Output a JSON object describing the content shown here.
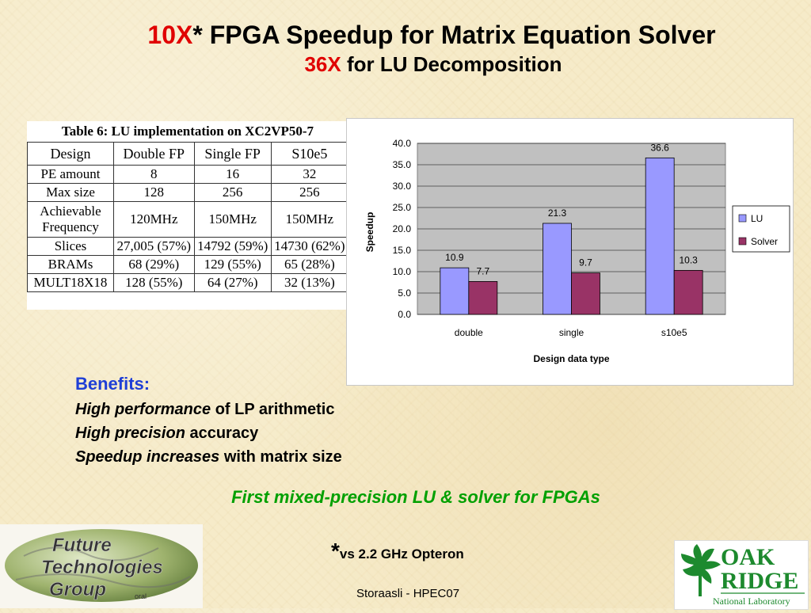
{
  "title": {
    "line1_red": "10X",
    "line1_rest": "* FPGA Speedup for Matrix Equation Solver",
    "line2_red": "36X",
    "line2_rest": " for LU Decomposition"
  },
  "table": {
    "caption": "Table 6: LU implementation on XC2VP50-7",
    "headers": [
      "Design",
      "Double FP",
      "Single FP",
      "S10e5"
    ],
    "rows": [
      [
        "PE amount",
        "8",
        "16",
        "32"
      ],
      [
        "Max size",
        "128",
        "256",
        "256"
      ],
      [
        "Achievable Frequency",
        "120MHz",
        "150MHz",
        "150MHz"
      ],
      [
        "Slices",
        "27,005 (57%)",
        "14792 (59%)",
        "14730 (62%)"
      ],
      [
        "BRAMs",
        "68 (29%)",
        "129 (55%)",
        "65 (28%)"
      ],
      [
        "MULT18X18",
        "128 (55%)",
        "64 (27%)",
        "32 (13%)"
      ]
    ]
  },
  "chart_data": {
    "type": "bar",
    "categories": [
      "double",
      "single",
      "s10e5"
    ],
    "series": [
      {
        "name": "LU",
        "values": [
          10.9,
          21.3,
          36.6
        ],
        "color": "#9999ff"
      },
      {
        "name": "Solver",
        "values": [
          7.7,
          9.7,
          10.3
        ],
        "color": "#993366"
      }
    ],
    "xlabel": "Design data type",
    "ylabel": "Speedup",
    "ylim": [
      0,
      40
    ],
    "yticks": [
      "0.0",
      "5.0",
      "10.0",
      "15.0",
      "20.0",
      "25.0",
      "30.0",
      "35.0",
      "40.0"
    ],
    "grid": true,
    "plot_background": "#c0c0c0",
    "legend": "right"
  },
  "benefits": {
    "heading": "Benefits:",
    "items": [
      {
        "emph": "High performance",
        "rest": " of LP arithmetic"
      },
      {
        "emph": "High precision",
        "rest": " accuracy"
      },
      {
        "emph": "Speedup increases",
        "rest": " with matrix size"
      }
    ]
  },
  "tagline": "First mixed-precision LU & solver for FPGAs",
  "footnote": {
    "star": "*",
    "text": "vs 2.2 GHz Opteron"
  },
  "footer": "Storaasli  - HPEC07",
  "logos": {
    "ftg": {
      "line1": "Future",
      "line2": "Technologies",
      "line3": "Group",
      "small": "oral"
    },
    "ornl": {
      "word1": "OAK",
      "word2": "RIDGE",
      "sub": "National Laboratory"
    }
  }
}
